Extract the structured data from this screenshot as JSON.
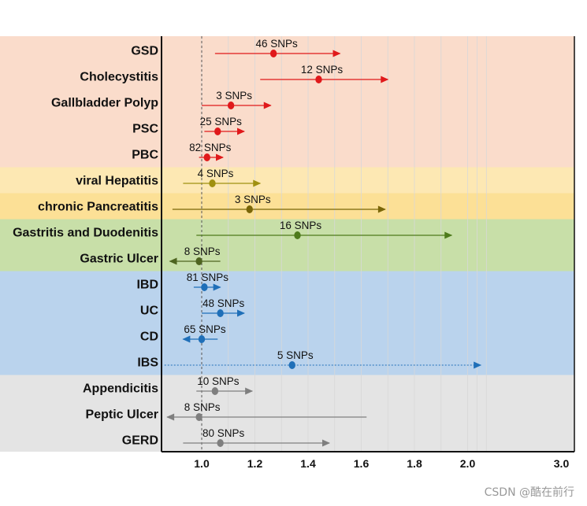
{
  "chart_data": {
    "type": "forest",
    "xlim": [
      0.86,
      3.0
    ],
    "x_ticks": [
      {
        "v": 1.0,
        "label": "1.0"
      },
      {
        "v": 1.2,
        "label": "1.2"
      },
      {
        "v": 1.4,
        "label": "1.4"
      },
      {
        "v": 1.6,
        "label": "1.6"
      },
      {
        "v": 1.8,
        "label": "1.8"
      },
      {
        "v": 2.0,
        "label": "2.0"
      },
      {
        "v": 3.0,
        "label": "3.0"
      }
    ],
    "reference_line": 1.0,
    "bands": [
      {
        "name": "hepatobiliary",
        "color": "#fadccb",
        "from": 0,
        "to": 4
      },
      {
        "name": "viral",
        "color": "#fde8b3",
        "from": 5,
        "to": 5
      },
      {
        "name": "pancreatic",
        "color": "#fce096",
        "from": 6,
        "to": 6
      },
      {
        "name": "gastric",
        "color": "#c8dfa8",
        "from": 7,
        "to": 8
      },
      {
        "name": "intestinal",
        "color": "#bad3ed",
        "from": 9,
        "to": 12
      },
      {
        "name": "other",
        "color": "#e4e4e4",
        "from": 13,
        "to": 15
      }
    ],
    "rows": [
      {
        "label": "GSD",
        "snps": "46 SNPs",
        "or": 1.27,
        "lo": 1.05,
        "hi": 1.52,
        "color": "#e0191b",
        "left_arrow": false,
        "right_arrow": true
      },
      {
        "label": "Cholecystitis",
        "snps": "12 SNPs",
        "or": 1.44,
        "lo": 1.22,
        "hi": 1.7,
        "color": "#e0191b",
        "left_arrow": false,
        "right_arrow": true
      },
      {
        "label": "Gallbladder Polyp",
        "snps": "3 SNPs",
        "or": 1.11,
        "lo": 1.0,
        "hi": 1.26,
        "color": "#e0191b",
        "left_arrow": false,
        "right_arrow": true
      },
      {
        "label": "PSC",
        "snps": "25 SNPs",
        "or": 1.06,
        "lo": 1.01,
        "hi": 1.16,
        "color": "#e0191b",
        "left_arrow": false,
        "right_arrow": true
      },
      {
        "label": "PBC",
        "snps": "82 SNPs",
        "or": 1.02,
        "lo": 0.99,
        "hi": 1.08,
        "color": "#e0191b",
        "left_arrow": false,
        "right_arrow": true
      },
      {
        "label": "viral Hepatitis",
        "snps": "4 SNPs",
        "or": 1.04,
        "lo": 0.93,
        "hi": 1.22,
        "color": "#a09010",
        "left_arrow": false,
        "right_arrow": true
      },
      {
        "label": "chronic Pancreatitis",
        "snps": "3 SNPs",
        "or": 1.18,
        "lo": 0.89,
        "hi": 1.69,
        "color": "#7a6608",
        "left_arrow": false,
        "right_arrow": true
      },
      {
        "label": "Gastritis and Duodenitis",
        "snps": "16 SNPs",
        "or": 1.36,
        "lo": 0.98,
        "hi": 1.94,
        "color": "#4e7a1c",
        "left_arrow": false,
        "right_arrow": true
      },
      {
        "label": "Gastric Ulcer",
        "snps": "8 SNPs",
        "or": 0.99,
        "lo": 0.88,
        "hi": 1.07,
        "color": "#4e6420",
        "left_arrow": true,
        "right_arrow": false
      },
      {
        "label": "IBD",
        "snps": "81 SNPs",
        "or": 1.01,
        "lo": 0.97,
        "hi": 1.07,
        "color": "#1f6fb8",
        "left_arrow": false,
        "right_arrow": true
      },
      {
        "label": "UC",
        "snps": "48 SNPs",
        "or": 1.07,
        "lo": 1.0,
        "hi": 1.16,
        "color": "#1f6fb8",
        "left_arrow": false,
        "right_arrow": true
      },
      {
        "label": "CD",
        "snps": "65 SNPs",
        "or": 1.0,
        "lo": 0.93,
        "hi": 1.06,
        "color": "#1f6fb8",
        "left_arrow": true,
        "right_arrow": false
      },
      {
        "label": "IBS",
        "snps": "5 SNPs",
        "or": 1.34,
        "lo": 0.86,
        "hi": 2.14,
        "color": "#1f6fb8",
        "left_arrow": false,
        "right_arrow": true,
        "dotted": true
      },
      {
        "label": "Appendicitis",
        "snps": "10 SNPs",
        "or": 1.05,
        "lo": 0.98,
        "hi": 1.19,
        "color": "#7f7f7f",
        "left_arrow": false,
        "right_arrow": true
      },
      {
        "label": "Peptic Ulcer",
        "snps": "8 SNPs",
        "or": 0.99,
        "lo": 0.87,
        "hi": 1.62,
        "color": "#7f7f7f",
        "left_arrow": true,
        "right_arrow": false
      },
      {
        "label": "GERD",
        "snps": "80 SNPs",
        "or": 1.07,
        "lo": 0.93,
        "hi": 1.48,
        "color": "#7f7f7f",
        "left_arrow": false,
        "right_arrow": true
      }
    ]
  },
  "watermark": "CSDN @酷在前行"
}
